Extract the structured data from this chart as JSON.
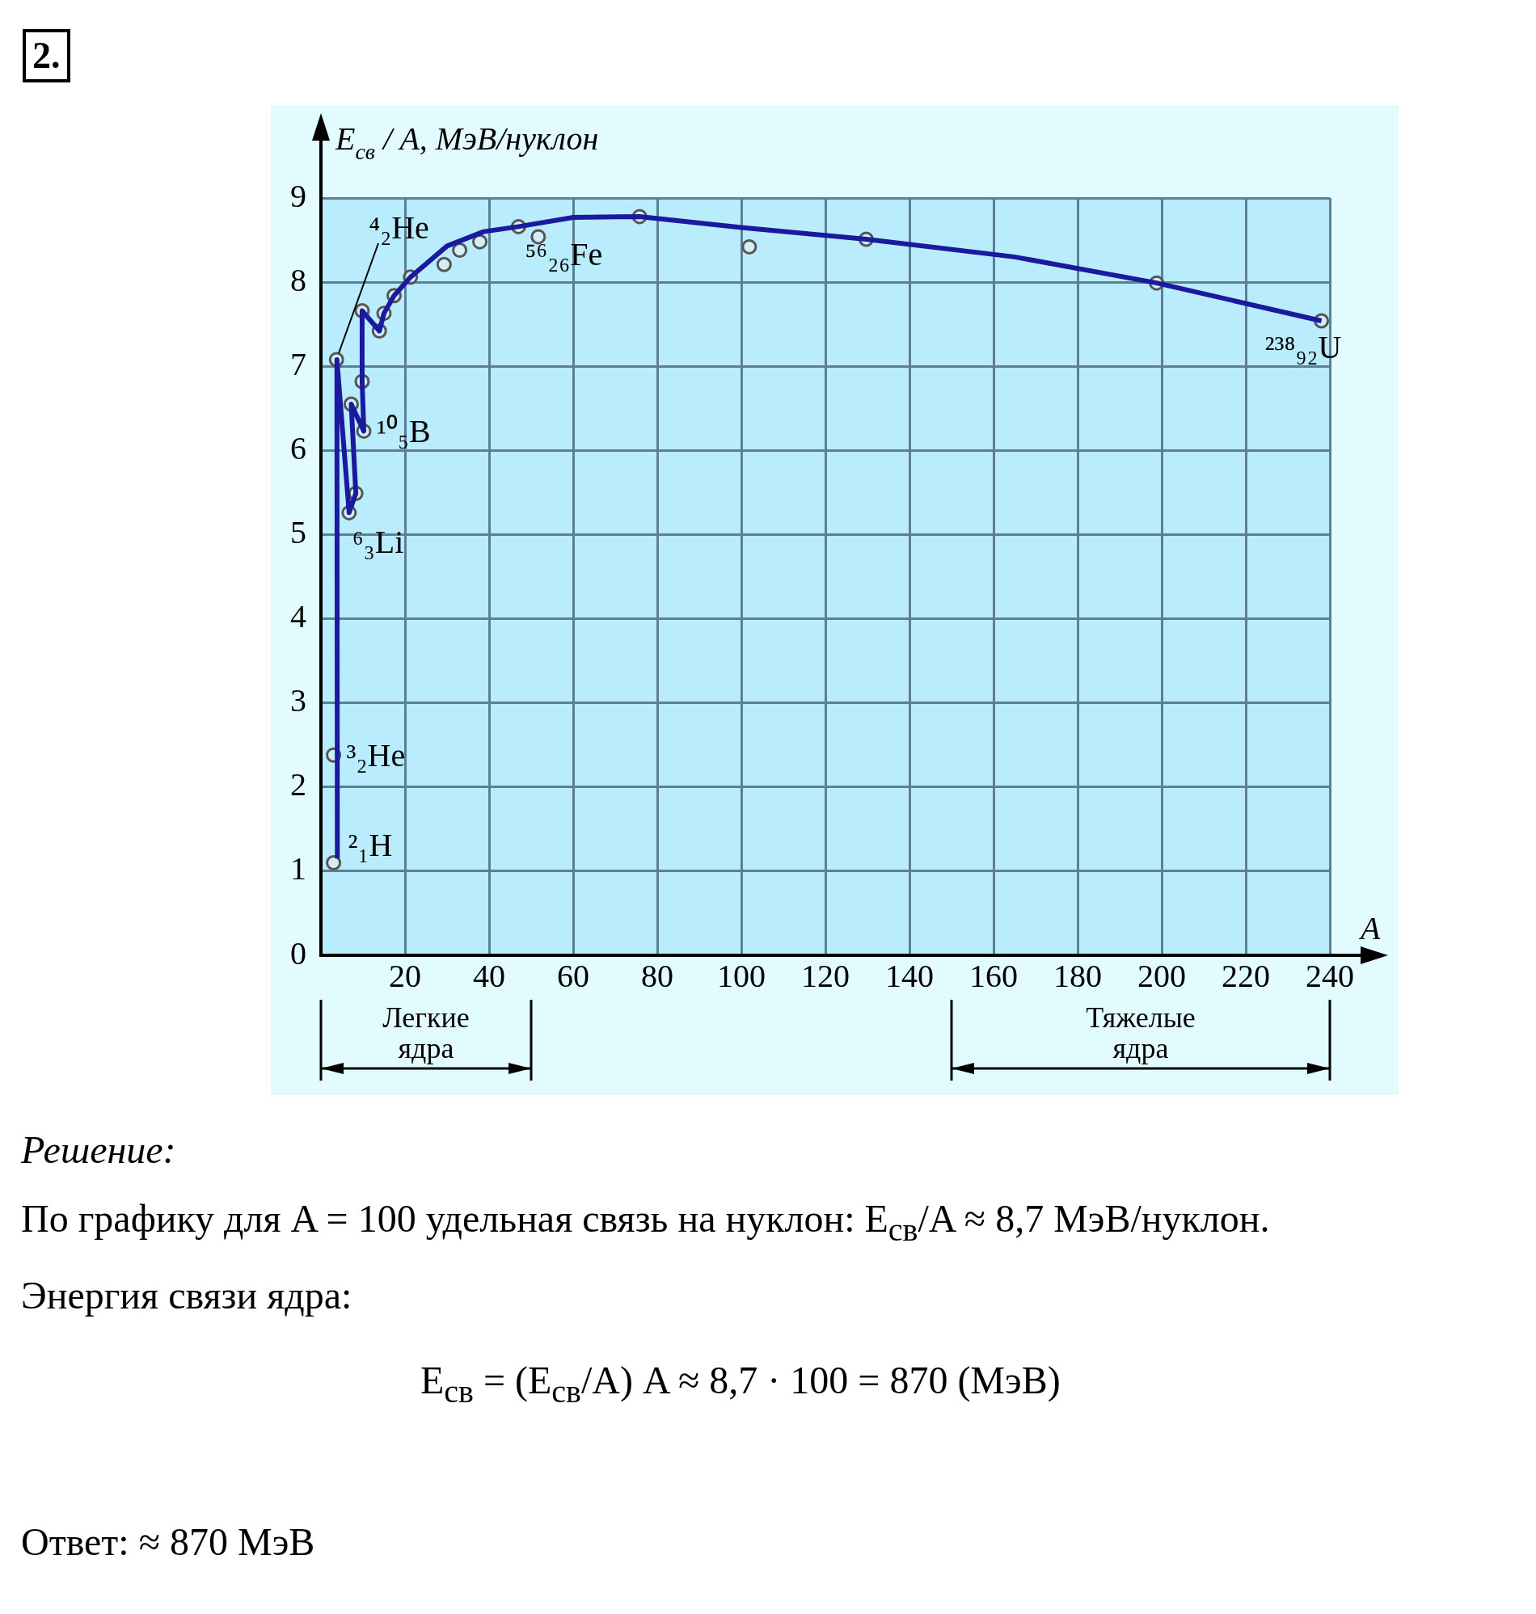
{
  "chart_data": {
    "type": "line",
    "title": "2.",
    "ylabel": "E$_{св}$ / A, МэВ/нуклон",
    "xlabel": "A",
    "xlim": [
      0,
      240
    ],
    "xticks": [
      20,
      40,
      60,
      80,
      100,
      120,
      140,
      160,
      180,
      200,
      220,
      240
    ],
    "ylim": [
      0,
      9
    ],
    "yticks": [
      0,
      1,
      2,
      3,
      4,
      5,
      6,
      7,
      8,
      9
    ],
    "grid": true,
    "legend": false,
    "series": [
      {
        "type": "line",
        "color": "#1a1a9e",
        "marker": "none",
        "line_style": "solid",
        "x": [
          3.9,
          3.8,
          6.7,
          8.3,
          7.2,
          10.2,
          9.8,
          9.8,
          13.9,
          15,
          17.4,
          21.3,
          30,
          38.7,
          47,
          60,
          75.8,
          100,
          129.7,
          165,
          198.8,
          238
        ],
        "values": [
          1.15,
          7.08,
          5.26,
          5.49,
          6.55,
          6.23,
          6.82,
          7.66,
          7.42,
          7.63,
          7.84,
          8.06,
          8.43,
          8.6,
          8.66,
          8.77,
          8.78,
          8.65,
          8.51,
          8.3,
          7.99,
          7.54
        ]
      },
      {
        "type": "scatter",
        "color": "#555555",
        "marker": "circle",
        "x": [
          3,
          3,
          3.7,
          6.7,
          8.3,
          7.2,
          9.8,
          10.2,
          9.8,
          13.9,
          15,
          17.4,
          21.3,
          29.3,
          33,
          37.8,
          47,
          51.7,
          75.8,
          101.9,
          129.7,
          198.8,
          238
        ],
        "values": [
          1.1,
          2.38,
          7.08,
          5.26,
          5.49,
          6.55,
          6.82,
          6.23,
          7.66,
          7.42,
          7.63,
          7.84,
          8.06,
          8.21,
          8.38,
          8.48,
          8.66,
          8.54,
          8.78,
          8.42,
          8.51,
          7.99,
          7.54
        ]
      }
    ],
    "annotations": [
      "Легкие ядра",
      "Тяжелые ядра",
      {
        "text": "⁴₂He",
        "x": 3.7,
        "y": 7.08
      },
      {
        "text": "³₂He",
        "x": 3,
        "y": 2.38
      },
      {
        "text": "²₁H",
        "x": 3,
        "y": 1.1
      },
      {
        "text": "⁶₃Li",
        "x": 6.7,
        "y": 5.26
      },
      {
        "text": "¹⁰₅B",
        "x": 10.2,
        "y": 6.23
      },
      {
        "text": "⁵⁶₂₆Fe",
        "x": 47,
        "y": 8.66
      },
      {
        "text": "²³⁸₉₂U",
        "x": 238,
        "y": 7.54
      },
      "Решение:",
      "По графику для A = 100 удельная связь на нуклон: E$_{св}$/A ≈ 8,7 МэВ/нуклон.",
      "Энергия связи ядра:",
      "E$_{св}$ = (E$_{св}$/A) A ≈ 8,7 · 100 = 870 (МэВ)",
      "Ответ: ≈ 870 МэВ"
    ]
  }
}
